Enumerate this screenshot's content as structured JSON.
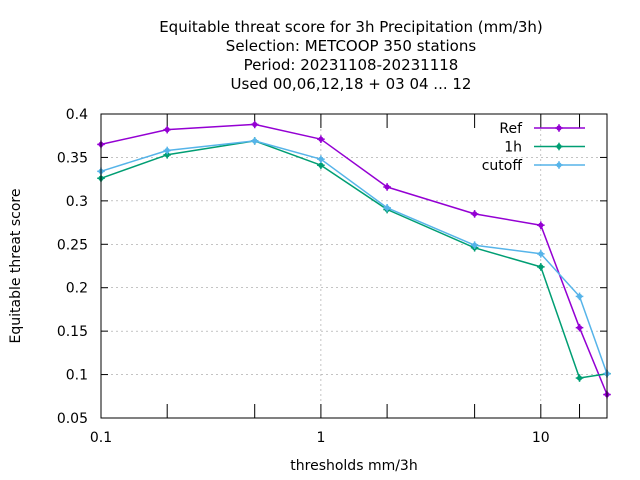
{
  "chart_data": {
    "type": "line",
    "title_lines": [
      "Equitable threat score  for 3h Precipitation (mm/3h)",
      "Selection: METCOOP    350 stations",
      "Period: 20231108-20231118",
      "Used  00,06,12,18 + 03 04 ... 12"
    ],
    "xlabel": "thresholds mm/3h",
    "ylabel": "Equitable threat score",
    "xscale": "log",
    "xlim": [
      0.1,
      20
    ],
    "ylim": [
      0.05,
      0.4
    ],
    "xticks": [
      {
        "value": 0.1,
        "label": "0.1"
      },
      {
        "value": 1,
        "label": "1"
      },
      {
        "value": 10,
        "label": "10"
      }
    ],
    "x_minor_ticks": [
      0.2,
      0.5,
      2,
      5,
      15
    ],
    "yticks": [
      {
        "value": 0.05,
        "label": "0.05"
      },
      {
        "value": 0.1,
        "label": "0.1"
      },
      {
        "value": 0.15,
        "label": "0.15"
      },
      {
        "value": 0.2,
        "label": "0.2"
      },
      {
        "value": 0.25,
        "label": "0.25"
      },
      {
        "value": 0.3,
        "label": "0.3"
      },
      {
        "value": 0.35,
        "label": "0.35"
      },
      {
        "value": 0.4,
        "label": "0.4"
      }
    ],
    "legend_position": "top-right",
    "x": [
      0.1,
      0.2,
      0.5,
      1,
      2,
      5,
      10,
      15,
      20
    ],
    "series": [
      {
        "name": "Ref",
        "color": "#9400d3",
        "values": [
          0.365,
          0.382,
          0.388,
          0.371,
          0.316,
          0.285,
          0.272,
          0.154,
          0.077
        ]
      },
      {
        "name": "1h",
        "color": "#009e73",
        "values": [
          0.326,
          0.353,
          0.369,
          0.341,
          0.29,
          0.246,
          0.224,
          0.096,
          0.101
        ]
      },
      {
        "name": "cutoff",
        "color": "#56b4e9",
        "values": [
          0.334,
          0.358,
          0.369,
          0.348,
          0.292,
          0.249,
          0.239,
          0.19,
          0.101
        ]
      }
    ]
  }
}
